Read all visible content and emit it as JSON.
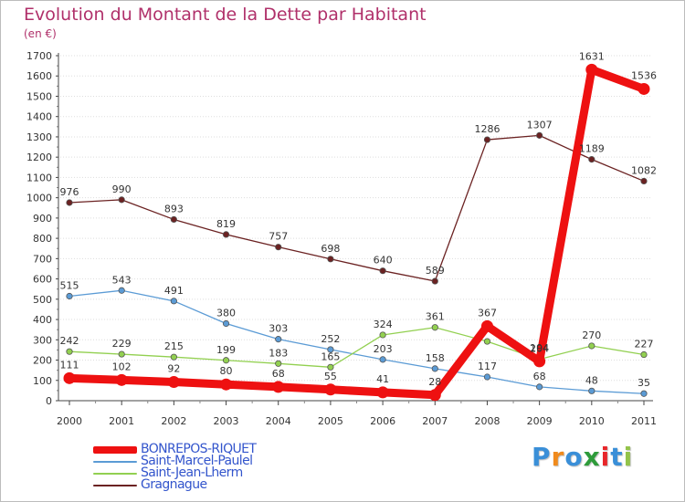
{
  "title": "Evolution du Montant de la Dette par Habitant",
  "unit_label": "(en €)",
  "logo_text": "Proxiti",
  "colors": {
    "title": "#b0306a",
    "axis": "#444444",
    "grid": "#dddddd",
    "bonrepos": "#ee1111",
    "saint_marcel": "#5b9bd5",
    "saint_jean": "#92d050",
    "gragnague": "#6b2222"
  },
  "chart_data": {
    "type": "line",
    "title": "Evolution du Montant de la Dette par Habitant",
    "ylabel": "(en €)",
    "xlabel": "",
    "x": [
      "2000",
      "2001",
      "2002",
      "2003",
      "2004",
      "2005",
      "2006",
      "2007",
      "2008",
      "2009",
      "2010",
      "2011"
    ],
    "ylim": [
      0,
      1700
    ],
    "yticks": [
      0,
      100,
      200,
      300,
      400,
      500,
      600,
      700,
      800,
      900,
      1000,
      1100,
      1200,
      1300,
      1400,
      1500,
      1600,
      1700
    ],
    "grid": true,
    "legend_position": "bottom-left",
    "series": [
      {
        "name": "BONREPOS-RIQUET",
        "color": "#ee1111",
        "emphasis": true,
        "values": [
          111,
          102,
          92,
          80,
          68,
          55,
          41,
          28,
          367,
          194,
          1631,
          1536
        ],
        "labels": [
          "111",
          "102",
          "92",
          "80",
          "68",
          "55",
          "41",
          "28",
          "367",
          "194",
          "1631",
          "1536"
        ]
      },
      {
        "name": "Saint-Marcel-Paulel",
        "color": "#5b9bd5",
        "values": [
          515,
          543,
          491,
          380,
          303,
          252,
          203,
          158,
          117,
          68,
          48,
          35
        ],
        "labels": [
          "515",
          "543",
          "491",
          "380",
          "303",
          "252",
          "203",
          "158",
          "117",
          "68",
          "48",
          "35"
        ]
      },
      {
        "name": "Saint-Jean-Lherm",
        "color": "#92d050",
        "values": [
          242,
          229,
          215,
          199,
          183,
          165,
          324,
          361,
          292,
          204,
          270,
          227
        ],
        "labels": [
          "242",
          "229",
          "215",
          "199",
          "183",
          "165",
          "324",
          "361",
          "",
          "204",
          "270",
          "227"
        ]
      },
      {
        "name": "Gragnague",
        "color": "#6b2222",
        "values": [
          976,
          990,
          893,
          819,
          757,
          698,
          640,
          589,
          1286,
          1307,
          1189,
          1082
        ],
        "labels": [
          "976",
          "990",
          "893",
          "819",
          "757",
          "698",
          "640",
          "589",
          "1286",
          "1307",
          "1189",
          "1082"
        ]
      }
    ]
  },
  "legend": {
    "items": [
      {
        "label": "BONREPOS-RIQUET",
        "color": "#ee1111"
      },
      {
        "label": "Saint-Marcel-Paulel",
        "color": "#5b9bd5"
      },
      {
        "label": "Saint-Jean-Lherm",
        "color": "#92d050"
      },
      {
        "label": "Gragnague",
        "color": "#6b2222"
      }
    ]
  }
}
